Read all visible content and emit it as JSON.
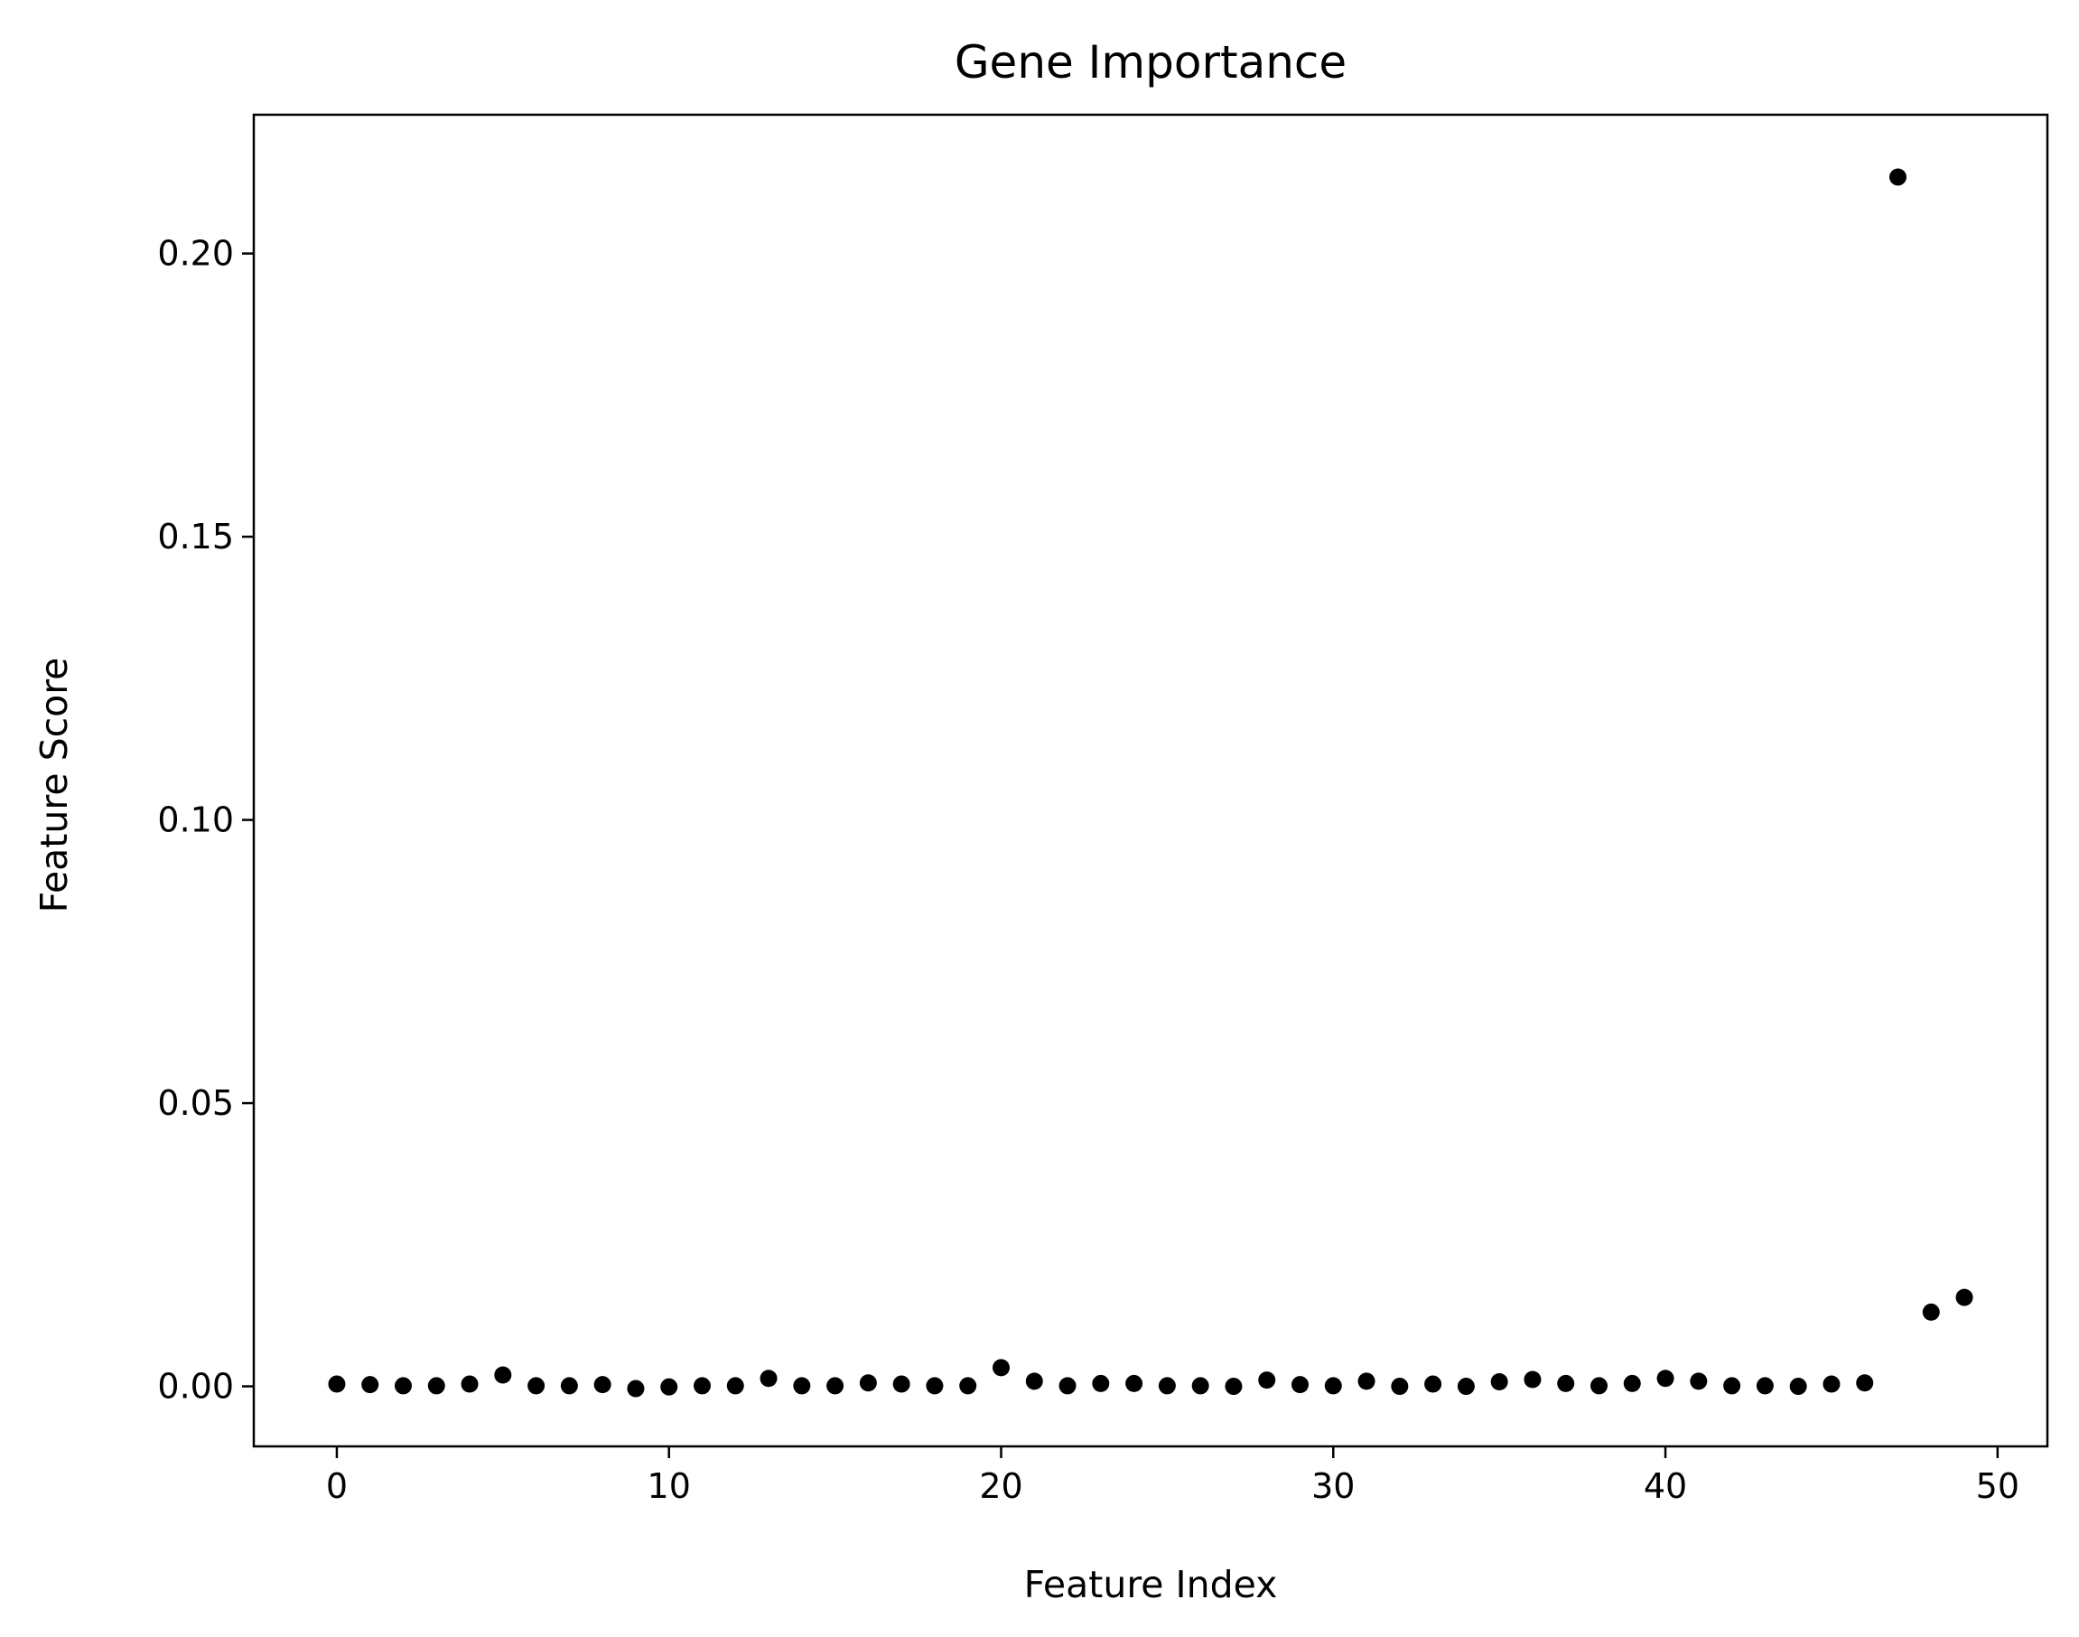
{
  "chart_data": {
    "type": "scatter",
    "title": "Gene Importance",
    "xlabel": "Feature Index",
    "ylabel": "Feature Score",
    "xlim": [
      -2.5,
      51.5
    ],
    "ylim": [
      -0.0106,
      0.2245
    ],
    "xticks": [
      0,
      10,
      20,
      30,
      40,
      50
    ],
    "xtick_labels": [
      "0",
      "10",
      "20",
      "30",
      "40",
      "50"
    ],
    "yticks": [
      0.0,
      0.05,
      0.1,
      0.15,
      0.2
    ],
    "ytick_labels": [
      "0.00",
      "0.05",
      "0.10",
      "0.15",
      "0.20"
    ],
    "grid": false,
    "marker_color": "#000000",
    "x": [
      0,
      1,
      2,
      3,
      4,
      5,
      6,
      7,
      8,
      9,
      10,
      11,
      12,
      13,
      14,
      15,
      16,
      17,
      18,
      19,
      20,
      21,
      22,
      23,
      24,
      25,
      26,
      27,
      28,
      29,
      30,
      31,
      32,
      33,
      34,
      35,
      36,
      37,
      38,
      39,
      40,
      41,
      42,
      43,
      44,
      45,
      46,
      47,
      48,
      49
    ],
    "y": [
      0.0004,
      0.0003,
      0.0001,
      0.0001,
      0.0004,
      0.002,
      0.0001,
      0.0001,
      0.0003,
      -0.0004,
      -0.0001,
      0.0001,
      0.0001,
      0.0014,
      0.0001,
      0.0001,
      0.0006,
      0.0004,
      0.0001,
      0.0001,
      0.0033,
      0.0009,
      0.0001,
      0.0005,
      0.0005,
      0.0001,
      0.0001,
      0.0,
      0.0011,
      0.0003,
      0.0001,
      0.0009,
      0.0,
      0.0004,
      0.0,
      0.0008,
      0.0012,
      0.0005,
      0.0001,
      0.0005,
      0.0014,
      0.0009,
      0.0001,
      0.0001,
      0.0,
      0.0004,
      0.0006,
      0.2135,
      0.0131,
      0.0157
    ]
  }
}
